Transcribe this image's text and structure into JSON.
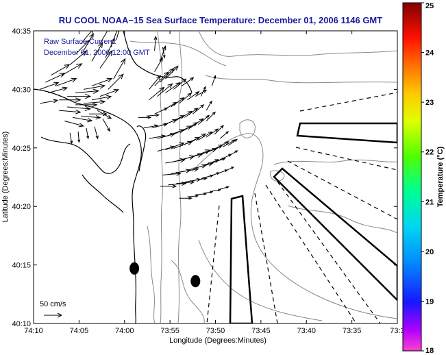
{
  "figure": {
    "title": "RU COOL  NOAA−15  Sea Surface Temperature:  December 01, 2006 1146 GMT",
    "raw_current_label": "Raw Surface Current:",
    "raw_current_date": "December 01, 2006 12:00 GMT",
    "scale_label": "50 cm/s",
    "xlabel": "Longitude (Degrees:Minutes)",
    "ylabel": "Latitude (Degrees:Minutes)",
    "x_ticks": [
      "74:10",
      "74:05",
      "74:00",
      "73:55",
      "73:50",
      "73:45",
      "73:40",
      "73:35",
      "73:3"
    ],
    "y_ticks": [
      "40:35",
      "40:30",
      "40:25",
      "40:20",
      "40:15",
      "40:10"
    ]
  },
  "colorbar": {
    "label": "Temperature (°C)",
    "ticks": [
      "25",
      "24",
      "23",
      "22",
      "21",
      "20",
      "19",
      "18"
    ],
    "range": [
      18,
      25
    ],
    "colors": [
      "#ff3cc8",
      "#c000ff",
      "#2020ff",
      "#00a0ff",
      "#00e0e0",
      "#00ff90",
      "#60ff00",
      "#e0ff00",
      "#ffd000",
      "#ff8000",
      "#ff2000",
      "#c00000",
      "#800000"
    ]
  },
  "chart_data": {
    "type": "map",
    "xlabel": "Longitude (Degrees:Minutes)",
    "ylabel": "Latitude (Degrees:Minutes)",
    "x_range_deg": [
      -74.1667,
      -73.5
    ],
    "y_range_deg": [
      40.1667,
      40.5833
    ],
    "current_vectors": [
      {
        "lon": -74.155,
        "lat": 40.5,
        "dir": 20,
        "mag": 0.55
      },
      {
        "lon": -74.145,
        "lat": 40.51,
        "dir": 25,
        "mag": 0.6
      },
      {
        "lon": -74.135,
        "lat": 40.52,
        "dir": 30,
        "mag": 0.6
      },
      {
        "lon": -74.155,
        "lat": 40.48,
        "dir": 10,
        "mag": 0.5
      },
      {
        "lon": -74.14,
        "lat": 40.495,
        "dir": 15,
        "mag": 0.55
      },
      {
        "lon": -74.125,
        "lat": 40.505,
        "dir": 20,
        "mag": 0.6
      },
      {
        "lon": -74.115,
        "lat": 40.52,
        "dir": 30,
        "mag": 0.65
      },
      {
        "lon": -74.1,
        "lat": 40.535,
        "dir": 40,
        "mag": 0.6
      },
      {
        "lon": -74.09,
        "lat": 40.55,
        "dir": 45,
        "mag": 0.55
      },
      {
        "lon": -74.08,
        "lat": 40.565,
        "dir": 50,
        "mag": 0.55
      },
      {
        "lon": -74.12,
        "lat": 40.485,
        "dir": 0,
        "mag": 0.6
      },
      {
        "lon": -74.105,
        "lat": 40.49,
        "dir": 0,
        "mag": 0.65
      },
      {
        "lon": -74.09,
        "lat": 40.495,
        "dir": 5,
        "mag": 0.65
      },
      {
        "lon": -74.075,
        "lat": 40.5,
        "dir": 10,
        "mag": 0.6
      },
      {
        "lon": -74.06,
        "lat": 40.505,
        "dir": 20,
        "mag": 0.6
      },
      {
        "lon": -74.12,
        "lat": 40.47,
        "dir": -5,
        "mag": 0.6
      },
      {
        "lon": -74.105,
        "lat": 40.475,
        "dir": -5,
        "mag": 0.65
      },
      {
        "lon": -74.09,
        "lat": 40.478,
        "dir": 0,
        "mag": 0.6
      },
      {
        "lon": -74.075,
        "lat": 40.48,
        "dir": 5,
        "mag": 0.6
      },
      {
        "lon": -74.06,
        "lat": 40.485,
        "dir": 10,
        "mag": 0.55
      },
      {
        "lon": -74.045,
        "lat": 40.49,
        "dir": 20,
        "mag": 0.55
      },
      {
        "lon": -74.03,
        "lat": 40.5,
        "dir": 45,
        "mag": 0.6
      },
      {
        "lon": -74.02,
        "lat": 40.515,
        "dir": 60,
        "mag": 0.65
      },
      {
        "lon": -74.045,
        "lat": 40.53,
        "dir": 55,
        "mag": 0.6
      },
      {
        "lon": -74.06,
        "lat": 40.54,
        "dir": 60,
        "mag": 0.6
      },
      {
        "lon": -74.075,
        "lat": 40.555,
        "dir": 60,
        "mag": 0.55
      },
      {
        "lon": -74.035,
        "lat": 40.545,
        "dir": 65,
        "mag": 0.6
      },
      {
        "lon": -74.025,
        "lat": 40.56,
        "dir": 70,
        "mag": 0.6
      },
      {
        "lon": -74.045,
        "lat": 40.565,
        "dir": 60,
        "mag": 0.55
      },
      {
        "lon": -74.015,
        "lat": 40.57,
        "dir": 75,
        "mag": 0.5
      },
      {
        "lon": -74.11,
        "lat": 40.455,
        "dir": -15,
        "mag": 0.55
      },
      {
        "lon": -74.095,
        "lat": 40.46,
        "dir": -10,
        "mag": 0.55
      },
      {
        "lon": -74.08,
        "lat": 40.462,
        "dir": -5,
        "mag": 0.55
      },
      {
        "lon": -74.065,
        "lat": 40.465,
        "dir": 0,
        "mag": 0.5
      },
      {
        "lon": -74.05,
        "lat": 40.47,
        "dir": -30,
        "mag": 0.45
      },
      {
        "lon": -74.04,
        "lat": 40.458,
        "dir": -60,
        "mag": 0.4
      },
      {
        "lon": -74.055,
        "lat": 40.447,
        "dir": -75,
        "mag": 0.35
      },
      {
        "lon": -74.07,
        "lat": 40.445,
        "dir": -80,
        "mag": 0.3
      },
      {
        "lon": -74.085,
        "lat": 40.44,
        "dir": -85,
        "mag": 0.3
      },
      {
        "lon": -74.1,
        "lat": 40.438,
        "dir": -80,
        "mag": 0.3
      },
      {
        "lon": -73.955,
        "lat": 40.5,
        "dir": 50,
        "mag": 0.5
      },
      {
        "lon": -73.945,
        "lat": 40.505,
        "dir": 45,
        "mag": 0.55
      },
      {
        "lon": -73.935,
        "lat": 40.51,
        "dir": 45,
        "mag": 0.55
      },
      {
        "lon": -73.925,
        "lat": 40.515,
        "dir": 45,
        "mag": 0.5
      },
      {
        "lon": -73.955,
        "lat": 40.485,
        "dir": 40,
        "mag": 0.55
      },
      {
        "lon": -73.94,
        "lat": 40.49,
        "dir": 40,
        "mag": 0.55
      },
      {
        "lon": -73.925,
        "lat": 40.495,
        "dir": 35,
        "mag": 0.5
      },
      {
        "lon": -73.91,
        "lat": 40.5,
        "dir": 40,
        "mag": 0.45
      },
      {
        "lon": -73.895,
        "lat": 40.505,
        "dir": 35,
        "mag": 0.4
      },
      {
        "lon": -73.945,
        "lat": 40.525,
        "dir": 60,
        "mag": 0.45
      },
      {
        "lon": -73.935,
        "lat": 40.54,
        "dir": 70,
        "mag": 0.45
      },
      {
        "lon": -73.945,
        "lat": 40.555,
        "dir": 85,
        "mag": 0.4
      },
      {
        "lon": -73.93,
        "lat": 40.56,
        "dir": -80,
        "mag": 0.3
      },
      {
        "lon": -73.975,
        "lat": 40.46,
        "dir": 0,
        "mag": 0.35
      },
      {
        "lon": -73.96,
        "lat": 40.462,
        "dir": 5,
        "mag": 0.35
      },
      {
        "lon": -73.945,
        "lat": 40.465,
        "dir": 25,
        "mag": 0.4
      },
      {
        "lon": -73.93,
        "lat": 40.47,
        "dir": 30,
        "mag": 0.45
      },
      {
        "lon": -73.915,
        "lat": 40.475,
        "dir": 35,
        "mag": 0.45
      },
      {
        "lon": -73.9,
        "lat": 40.48,
        "dir": 40,
        "mag": 0.45
      },
      {
        "lon": -73.885,
        "lat": 40.485,
        "dir": 35,
        "mag": 0.4
      },
      {
        "lon": -73.87,
        "lat": 40.49,
        "dir": 30,
        "mag": 0.35
      },
      {
        "lon": -73.965,
        "lat": 40.445,
        "dir": 10,
        "mag": 0.4
      },
      {
        "lon": -73.95,
        "lat": 40.445,
        "dir": 15,
        "mag": 0.45
      },
      {
        "lon": -73.935,
        "lat": 40.448,
        "dir": 20,
        "mag": 0.5
      },
      {
        "lon": -73.92,
        "lat": 40.452,
        "dir": 25,
        "mag": 0.5
      },
      {
        "lon": -73.905,
        "lat": 40.456,
        "dir": 30,
        "mag": 0.5
      },
      {
        "lon": -73.89,
        "lat": 40.46,
        "dir": 35,
        "mag": 0.45
      },
      {
        "lon": -73.875,
        "lat": 40.465,
        "dir": 40,
        "mag": 0.4
      },
      {
        "lon": -73.955,
        "lat": 40.43,
        "dir": 10,
        "mag": 0.45
      },
      {
        "lon": -73.94,
        "lat": 40.43,
        "dir": 15,
        "mag": 0.5
      },
      {
        "lon": -73.925,
        "lat": 40.433,
        "dir": 20,
        "mag": 0.55
      },
      {
        "lon": -73.91,
        "lat": 40.436,
        "dir": 25,
        "mag": 0.55
      },
      {
        "lon": -73.895,
        "lat": 40.44,
        "dir": 30,
        "mag": 0.5
      },
      {
        "lon": -73.88,
        "lat": 40.445,
        "dir": 35,
        "mag": 0.45
      },
      {
        "lon": -73.865,
        "lat": 40.45,
        "dir": 40,
        "mag": 0.4
      },
      {
        "lon": -73.85,
        "lat": 40.455,
        "dir": 45,
        "mag": 0.35
      },
      {
        "lon": -73.94,
        "lat": 40.412,
        "dir": 15,
        "mag": 0.5
      },
      {
        "lon": -73.925,
        "lat": 40.414,
        "dir": 20,
        "mag": 0.55
      },
      {
        "lon": -73.91,
        "lat": 40.416,
        "dir": 20,
        "mag": 0.55
      },
      {
        "lon": -73.895,
        "lat": 40.42,
        "dir": 25,
        "mag": 0.55
      },
      {
        "lon": -73.88,
        "lat": 40.424,
        "dir": 30,
        "mag": 0.5
      },
      {
        "lon": -73.865,
        "lat": 40.428,
        "dir": 30,
        "mag": 0.45
      },
      {
        "lon": -73.85,
        "lat": 40.432,
        "dir": 35,
        "mag": 0.4
      },
      {
        "lon": -73.835,
        "lat": 40.436,
        "dir": 45,
        "mag": 0.35
      },
      {
        "lon": -73.925,
        "lat": 40.395,
        "dir": 10,
        "mag": 0.55
      },
      {
        "lon": -73.91,
        "lat": 40.397,
        "dir": 15,
        "mag": 0.6
      },
      {
        "lon": -73.895,
        "lat": 40.4,
        "dir": 15,
        "mag": 0.6
      },
      {
        "lon": -73.88,
        "lat": 40.403,
        "dir": 20,
        "mag": 0.6
      },
      {
        "lon": -73.865,
        "lat": 40.406,
        "dir": 20,
        "mag": 0.55
      },
      {
        "lon": -73.85,
        "lat": 40.41,
        "dir": 25,
        "mag": 0.5
      },
      {
        "lon": -73.835,
        "lat": 40.414,
        "dir": 30,
        "mag": 0.45
      },
      {
        "lon": -73.82,
        "lat": 40.418,
        "dir": 30,
        "mag": 0.4
      },
      {
        "lon": -73.93,
        "lat": 40.378,
        "dir": 5,
        "mag": 0.5
      },
      {
        "lon": -73.915,
        "lat": 40.38,
        "dir": 10,
        "mag": 0.55
      },
      {
        "lon": -73.9,
        "lat": 40.382,
        "dir": 10,
        "mag": 0.55
      },
      {
        "lon": -73.885,
        "lat": 40.385,
        "dir": 15,
        "mag": 0.55
      },
      {
        "lon": -73.87,
        "lat": 40.388,
        "dir": 15,
        "mag": 0.5
      },
      {
        "lon": -73.855,
        "lat": 40.392,
        "dir": 20,
        "mag": 0.45
      },
      {
        "lon": -73.84,
        "lat": 40.395,
        "dir": 20,
        "mag": 0.4
      },
      {
        "lon": -73.825,
        "lat": 40.4,
        "dir": 25,
        "mag": 0.35
      },
      {
        "lon": -73.81,
        "lat": 40.405,
        "dir": 30,
        "mag": 0.3
      },
      {
        "lon": -73.935,
        "lat": 40.362,
        "dir": 0,
        "mag": 0.45
      },
      {
        "lon": -73.92,
        "lat": 40.364,
        "dir": 5,
        "mag": 0.5
      },
      {
        "lon": -73.905,
        "lat": 40.366,
        "dir": 5,
        "mag": 0.5
      },
      {
        "lon": -73.89,
        "lat": 40.368,
        "dir": 10,
        "mag": 0.45
      },
      {
        "lon": -73.875,
        "lat": 40.37,
        "dir": 10,
        "mag": 0.4
      },
      {
        "lon": -73.86,
        "lat": 40.373,
        "dir": 15,
        "mag": 0.35
      },
      {
        "lon": -73.845,
        "lat": 40.376,
        "dir": 20,
        "mag": 0.3
      },
      {
        "lon": -73.83,
        "lat": 40.38,
        "dir": 20,
        "mag": 0.3
      },
      {
        "lon": -73.815,
        "lat": 40.384,
        "dir": 25,
        "mag": 0.25
      },
      {
        "lon": -73.9,
        "lat": 40.345,
        "dir": 0,
        "mag": 0.35
      },
      {
        "lon": -73.885,
        "lat": 40.347,
        "dir": 5,
        "mag": 0.3
      },
      {
        "lon": -73.87,
        "lat": 40.35,
        "dir": 5,
        "mag": 0.3
      },
      {
        "lon": -73.855,
        "lat": 40.352,
        "dir": 10,
        "mag": 0.25
      },
      {
        "lon": -73.84,
        "lat": 40.355,
        "dir": 10,
        "mag": 0.25
      },
      {
        "lon": -73.825,
        "lat": 40.358,
        "dir": 15,
        "mag": 0.25
      },
      {
        "lon": -73.85,
        "lat": 40.47,
        "dir": 60,
        "mag": 0.3
      },
      {
        "lon": -73.86,
        "lat": 40.49,
        "dir": 65,
        "mag": 0.3
      },
      {
        "lon": -73.84,
        "lat": 40.505,
        "dir": 70,
        "mag": 0.3
      },
      {
        "lon": -73.825,
        "lat": 40.43,
        "dir": 40,
        "mag": 0.3
      },
      {
        "lon": -73.81,
        "lat": 40.42,
        "dir": 35,
        "mag": 0.3
      }
    ],
    "dots": [
      {
        "lon": -73.982,
        "lat": 40.245
      },
      {
        "lon": -73.87,
        "lat": 40.227
      }
    ]
  }
}
